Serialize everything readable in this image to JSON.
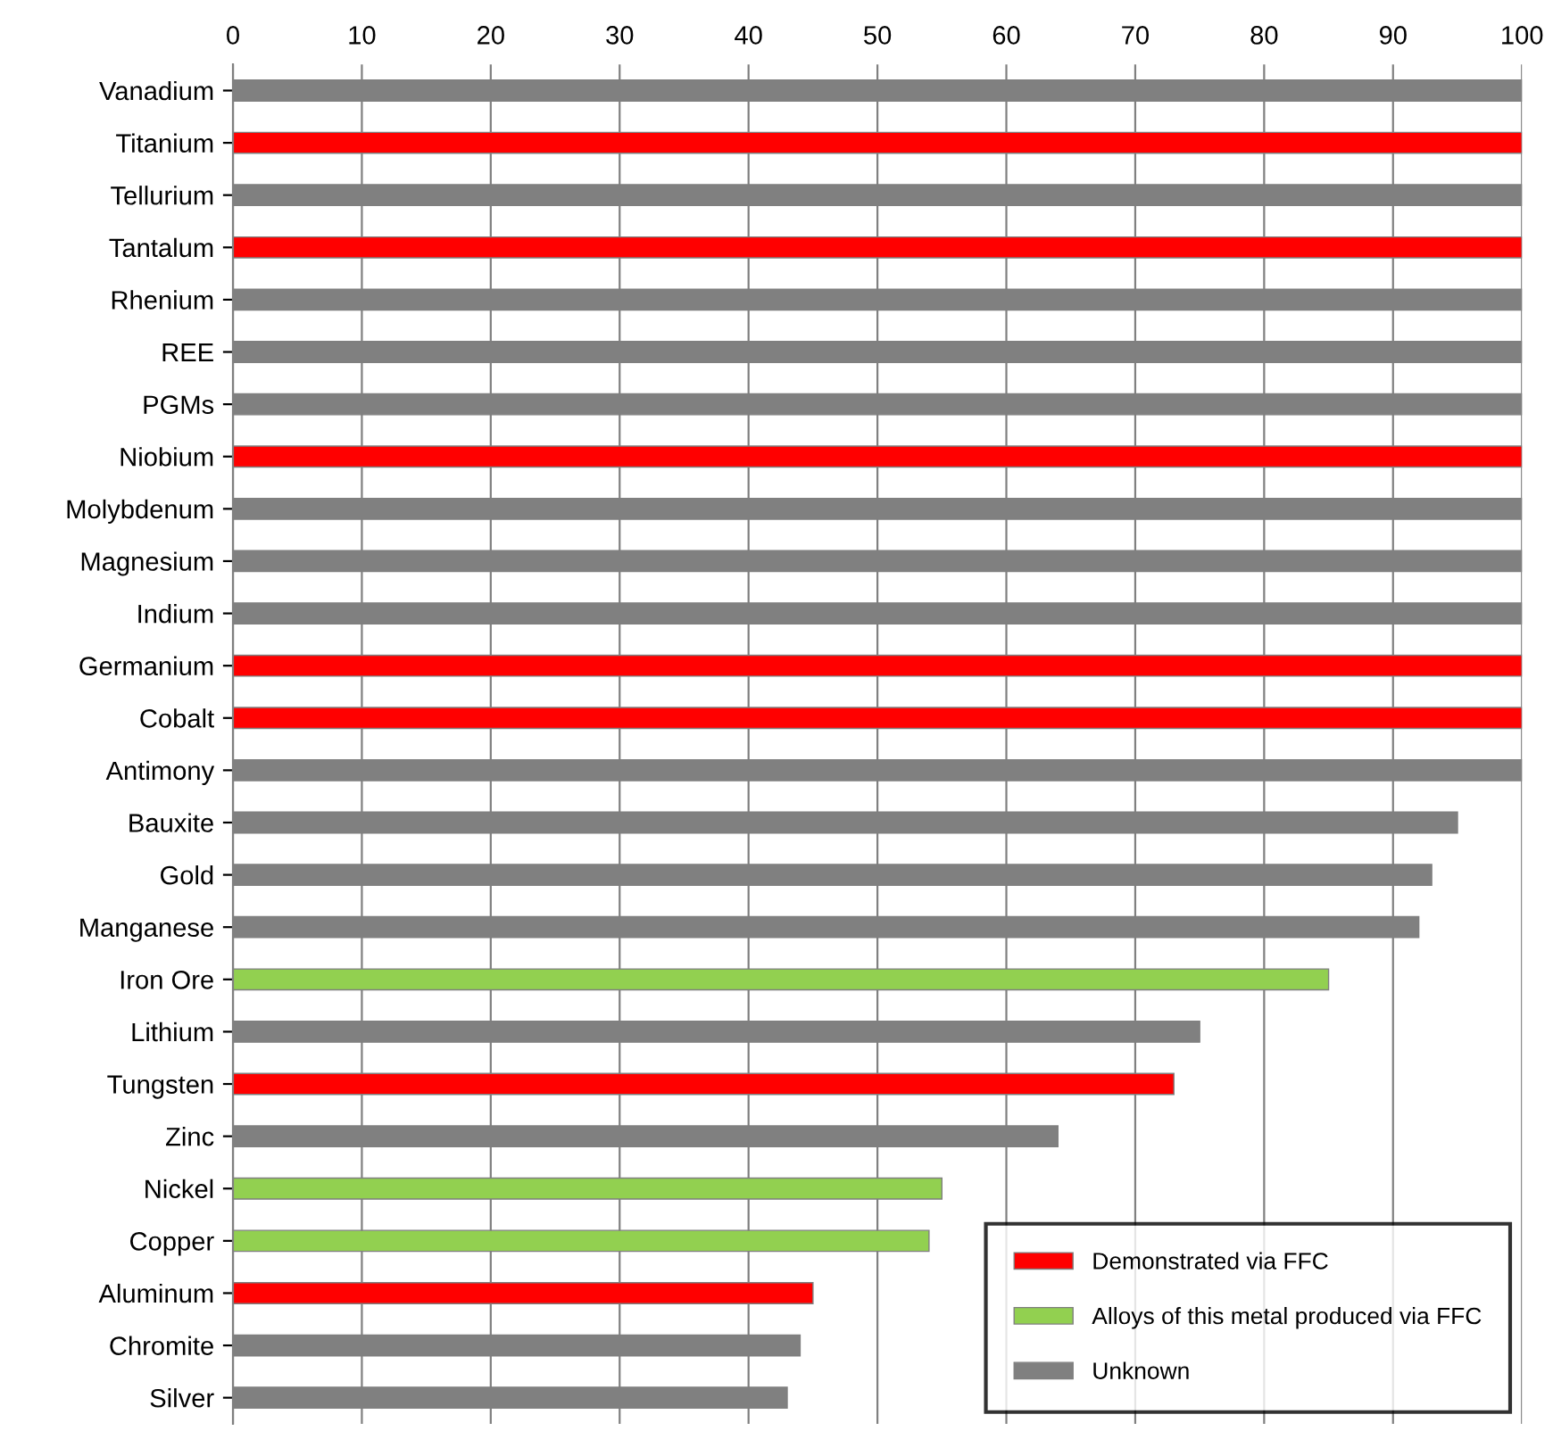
{
  "chart_data": {
    "type": "bar",
    "orientation": "horizontal",
    "stacked": true,
    "categories": [
      "Vanadium",
      "Titanium",
      "Tellurium",
      "Tantalum",
      "Rhenium",
      "REE",
      "PGMs",
      "Niobium",
      "Molybdenum",
      "Magnesium",
      "Indium",
      "Germanium",
      "Cobalt",
      "Antimony",
      "Bauxite",
      "Gold",
      "Manganese",
      "Iron Ore",
      "Lithium",
      "Tungsten",
      "Zinc",
      "Nickel",
      "Copper",
      "Aluminum",
      "Chromite",
      "Silver"
    ],
    "series": [
      {
        "name": "Demonstrated via FFC",
        "color": "#ff0000",
        "values": [
          null,
          100,
          null,
          100,
          null,
          null,
          null,
          100,
          null,
          null,
          null,
          100,
          100,
          null,
          null,
          null,
          null,
          null,
          null,
          73,
          null,
          null,
          null,
          45,
          null,
          null
        ]
      },
      {
        "name": "Alloys of this metal produced via FFC",
        "color": "#92d050",
        "values": [
          null,
          null,
          null,
          null,
          null,
          null,
          null,
          null,
          null,
          null,
          null,
          null,
          null,
          null,
          null,
          null,
          null,
          85,
          null,
          null,
          null,
          55,
          54,
          null,
          null,
          null
        ]
      },
      {
        "name": "Unknown",
        "color": "#808080",
        "values": [
          100,
          null,
          100,
          null,
          100,
          100,
          100,
          null,
          100,
          100,
          100,
          null,
          null,
          100,
          95,
          93,
          92,
          null,
          75,
          null,
          64,
          null,
          null,
          null,
          44,
          43
        ]
      }
    ],
    "xlim": [
      0,
      100
    ],
    "xticks": [
      0,
      10,
      20,
      30,
      40,
      50,
      60,
      70,
      80,
      90,
      100
    ],
    "grid": "x",
    "legend": "bottom right"
  }
}
